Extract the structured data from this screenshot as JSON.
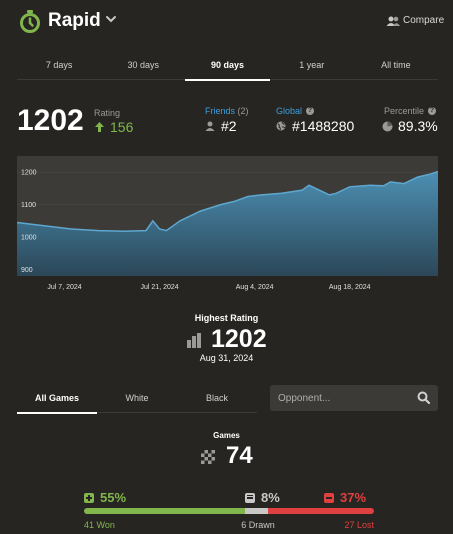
{
  "header": {
    "title": "Rapid",
    "compare_label": "Compare"
  },
  "range_tabs": [
    {
      "label": "7 days",
      "active": false
    },
    {
      "label": "30 days",
      "active": false
    },
    {
      "label": "90 days",
      "active": true
    },
    {
      "label": "1 year",
      "active": false
    },
    {
      "label": "All time",
      "active": false
    }
  ],
  "stats": {
    "rating": "1202",
    "rating_label": "Rating",
    "rating_delta": "156",
    "friends_label": "Friends",
    "friends_count": "(2)",
    "friends_rank": "#2",
    "global_label": "Global",
    "global_rank": "#1488280",
    "percentile_label": "Percentile",
    "percentile_value": "89.3%"
  },
  "chart_data": {
    "type": "area",
    "y_ticks": [
      900,
      1000,
      1100,
      1200
    ],
    "x_ticks": [
      "Jul 7, 2024",
      "Jul 21, 2024",
      "Aug 4, 2024",
      "Aug 18, 2024"
    ],
    "ylim": [
      880,
      1250
    ],
    "xlim": [
      "2024-06-30",
      "2024-08-31"
    ],
    "x": [
      "2024-06-30",
      "2024-07-04",
      "2024-07-08",
      "2024-07-12",
      "2024-07-16",
      "2024-07-19",
      "2024-07-20",
      "2024-07-21",
      "2024-07-22",
      "2024-07-24",
      "2024-07-27",
      "2024-07-30",
      "2024-08-01",
      "2024-08-03",
      "2024-08-05",
      "2024-08-08",
      "2024-08-11",
      "2024-08-12",
      "2024-08-13",
      "2024-08-15",
      "2024-08-16",
      "2024-08-18",
      "2024-08-21",
      "2024-08-23",
      "2024-08-24",
      "2024-08-26",
      "2024-08-28",
      "2024-08-30",
      "2024-08-31"
    ],
    "values": [
      1045,
      1035,
      1025,
      1020,
      1018,
      1020,
      1050,
      1025,
      1020,
      1050,
      1080,
      1100,
      1110,
      1125,
      1130,
      1135,
      1145,
      1160,
      1150,
      1130,
      1135,
      1155,
      1160,
      1158,
      1170,
      1165,
      1185,
      1195,
      1202
    ],
    "colors": {
      "line": "#5ea7cf",
      "fill_top": "#4c8fb3",
      "fill_bottom": "#2b4758",
      "background": "#3d3b38",
      "grid": "#4a4845",
      "tick": "#e0e0e0"
    }
  },
  "highest": {
    "label": "Highest Rating",
    "value": "1202",
    "date": "Aug 31, 2024"
  },
  "color_tabs": [
    {
      "label": "All Games",
      "active": true
    },
    {
      "label": "White",
      "active": false
    },
    {
      "label": "Black",
      "active": false
    }
  ],
  "search": {
    "placeholder": "Opponent..."
  },
  "games": {
    "label": "Games",
    "total": "74",
    "win_pct": "55%",
    "draw_pct": "8%",
    "loss_pct": "37%",
    "won_label": "41 Won",
    "drawn_label": "6 Drawn",
    "lost_label": "27 Lost",
    "win_fraction": 0.554,
    "draw_fraction": 0.081,
    "loss_fraction": 0.365
  },
  "colors": {
    "accent_green": "#81b64c",
    "accent_blue": "#3a9fde",
    "loss_red": "#e04040",
    "background": "#272522"
  }
}
